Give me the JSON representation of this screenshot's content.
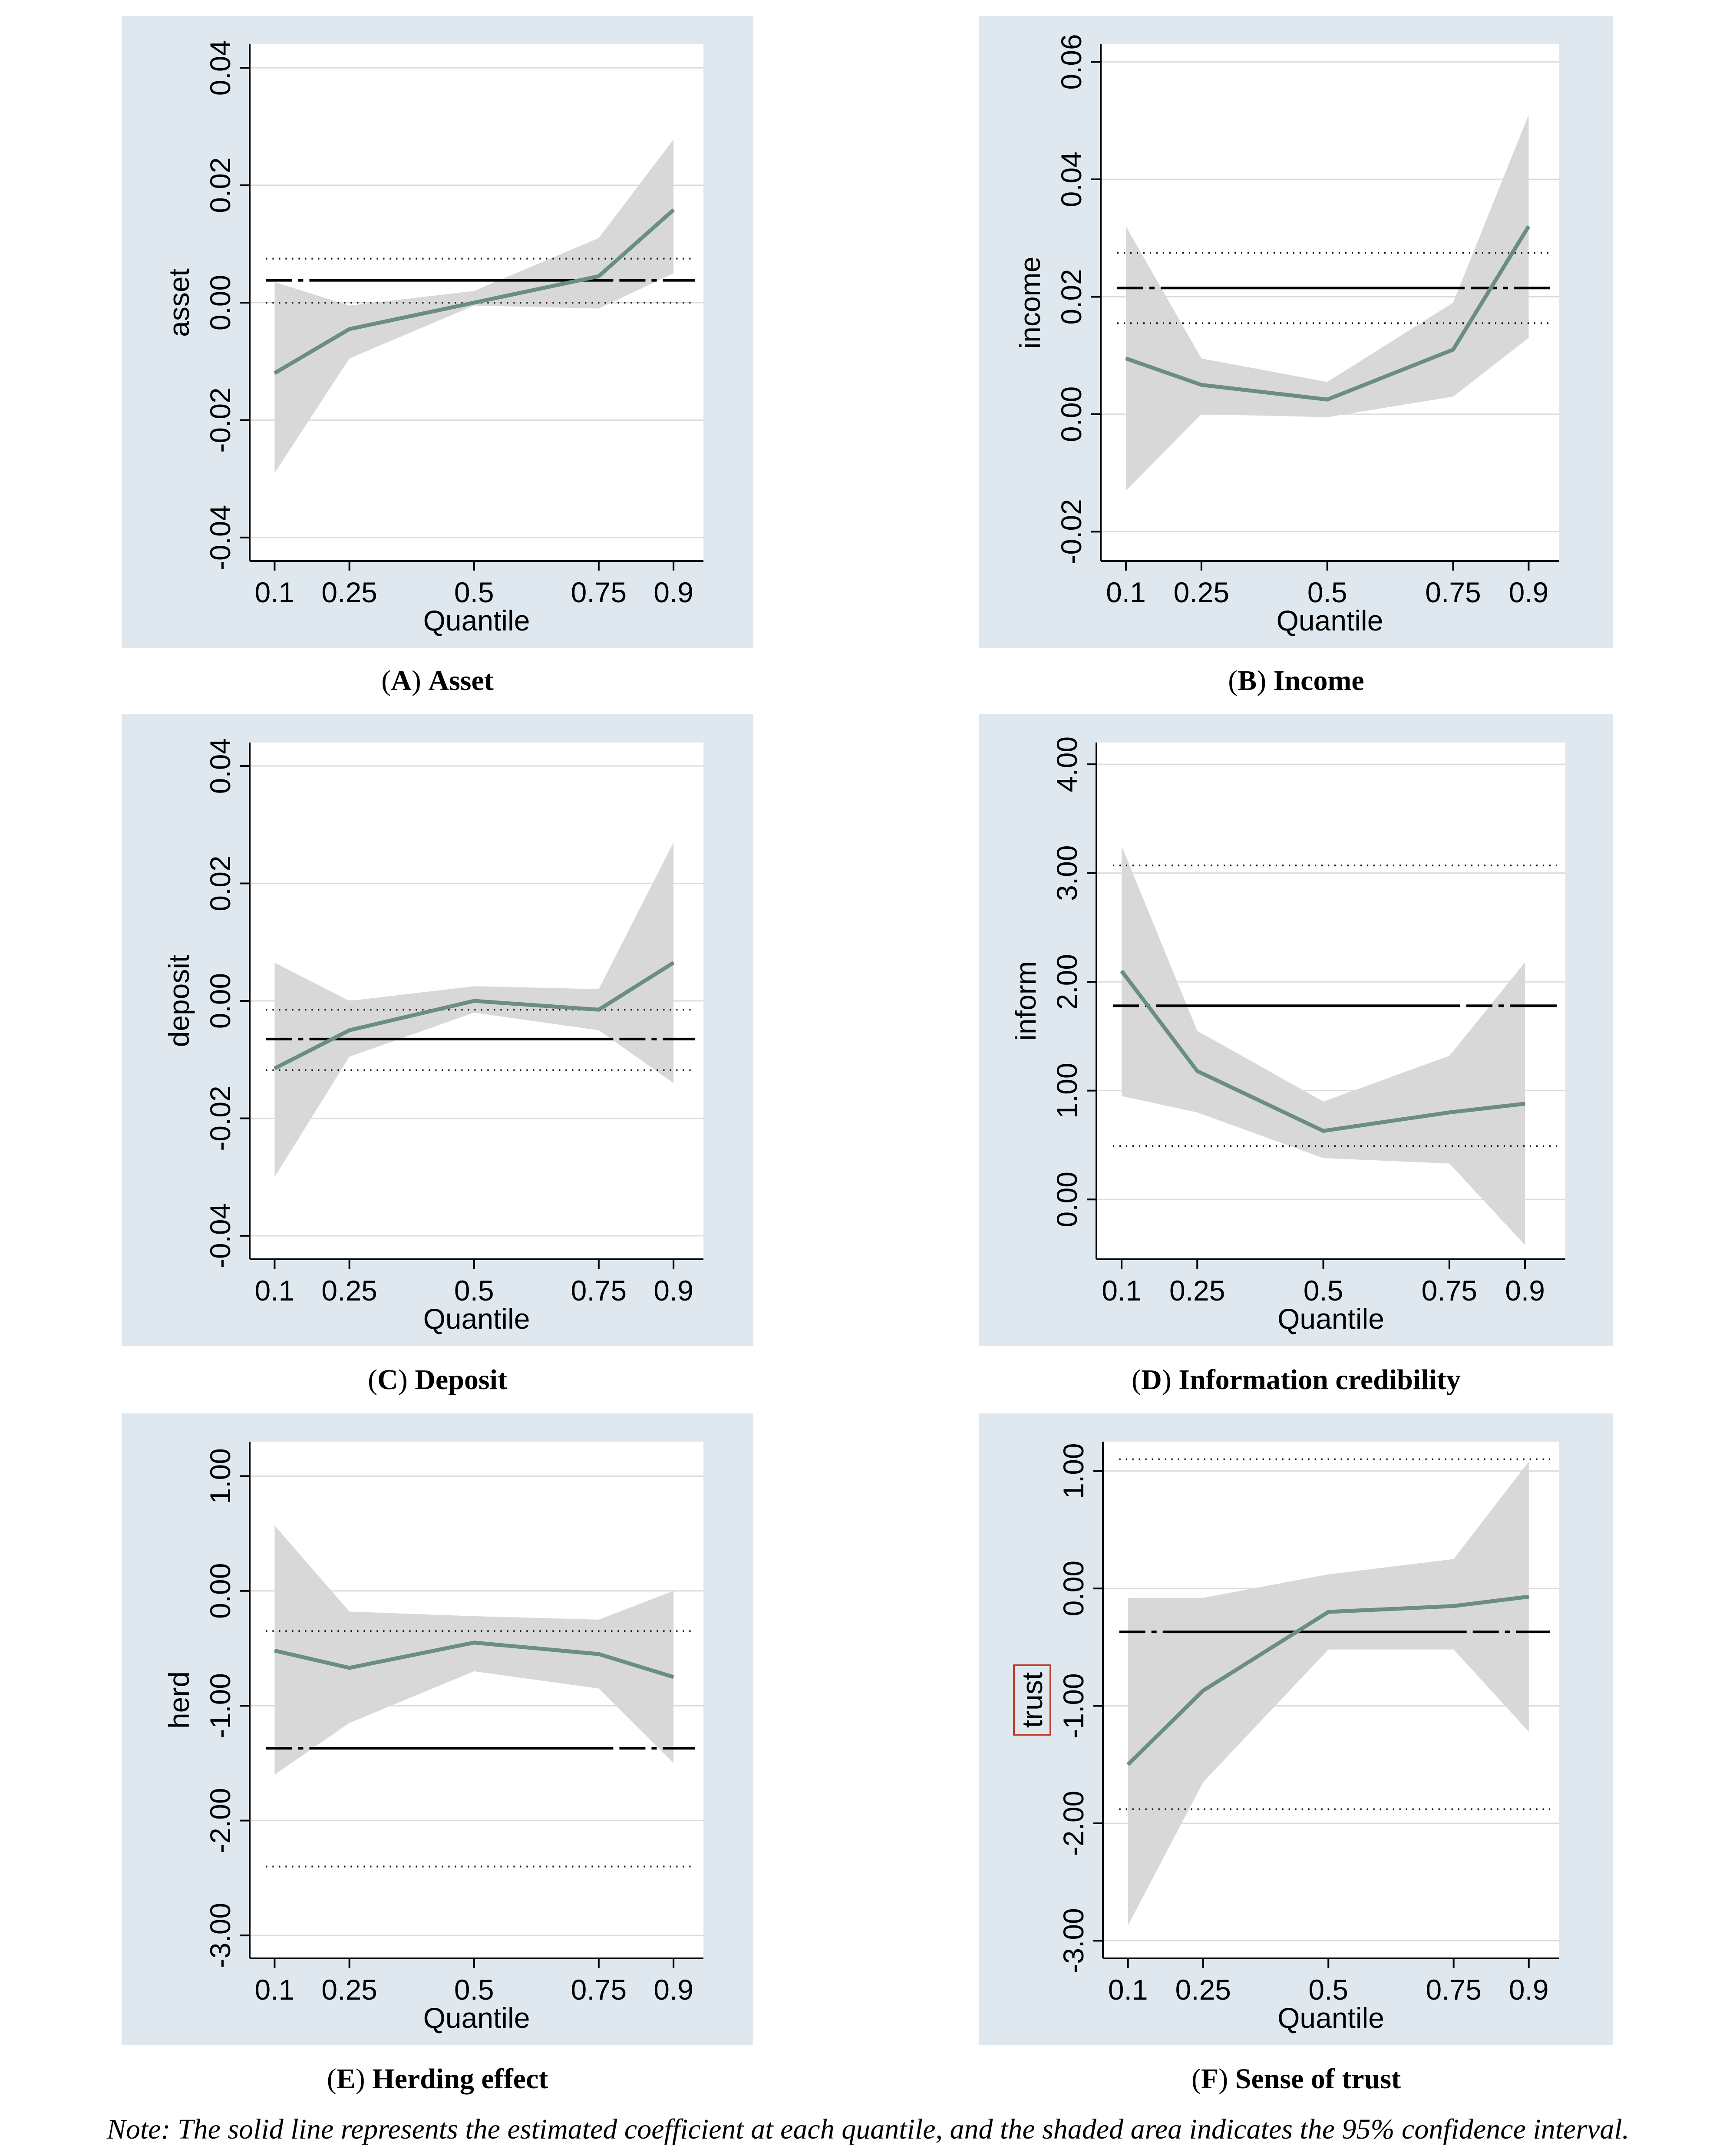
{
  "note": "Note: The solid line represents the estimated coefficient at each quantile, and the shaded area indicates the 95% confidence interval.",
  "colors": {
    "panel_bg": "#dfe8ee",
    "plot_bg": "#ffffff",
    "coef_line": "#6b8e82",
    "ci_fill": "#d8d8d8",
    "grid": "#dcdcdc",
    "ols_line": "#000000"
  },
  "chart_data": [
    {
      "id": "A",
      "type": "line",
      "caption_letter": "A",
      "caption_title": "Asset",
      "ylabel": "asset",
      "xlabel": "Quantile",
      "x": [
        0.1,
        0.25,
        0.5,
        0.75,
        0.9
      ],
      "x_tick_labels": [
        "0.1",
        "0.25",
        "0.5",
        "0.75",
        "0.9"
      ],
      "xlim": [
        0.05,
        0.96
      ],
      "ylim": [
        -0.044,
        0.044
      ],
      "y_ticks": [
        -0.04,
        -0.02,
        0.0,
        0.02,
        0.04
      ],
      "y_tick_labels": [
        "-0.04",
        "-0.02",
        "0.00",
        "0.02",
        "0.04"
      ],
      "coef": [
        -0.012,
        -0.0045,
        0.0,
        0.0045,
        0.0158
      ],
      "ci_lower": [
        -0.029,
        -0.0095,
        -0.0005,
        -0.001,
        0.005
      ],
      "ci_upper": [
        0.0035,
        -0.0005,
        0.002,
        0.011,
        0.0278
      ],
      "ols": 0.0038,
      "ols_upper": 0.0075,
      "ols_lower": 0.0
    },
    {
      "id": "B",
      "type": "line",
      "caption_letter": "B",
      "caption_title": "Income",
      "ylabel": "income",
      "xlabel": "Quantile",
      "x": [
        0.1,
        0.25,
        0.5,
        0.75,
        0.9
      ],
      "x_tick_labels": [
        "0.1",
        "0.25",
        "0.5",
        "0.75",
        "0.9"
      ],
      "xlim": [
        0.05,
        0.96
      ],
      "ylim": [
        -0.025,
        0.063
      ],
      "y_ticks": [
        -0.02,
        0.0,
        0.02,
        0.04,
        0.06
      ],
      "y_tick_labels": [
        "-0.02",
        "0.00",
        "0.02",
        "0.04",
        "0.06"
      ],
      "coef": [
        0.0095,
        0.005,
        0.0025,
        0.011,
        0.032
      ],
      "ci_lower": [
        -0.013,
        0.0,
        -0.0005,
        0.003,
        0.013
      ],
      "ci_upper": [
        0.032,
        0.0095,
        0.0055,
        0.019,
        0.051
      ],
      "ols": 0.0215,
      "ols_upper": 0.0275,
      "ols_lower": 0.0155
    },
    {
      "id": "C",
      "type": "line",
      "caption_letter": "C",
      "caption_title": "Deposit",
      "ylabel": "deposit",
      "xlabel": "Quantile",
      "x": [
        0.1,
        0.25,
        0.5,
        0.75,
        0.9
      ],
      "x_tick_labels": [
        "0.1",
        "0.25",
        "0.5",
        "0.75",
        "0.9"
      ],
      "xlim": [
        0.05,
        0.96
      ],
      "ylim": [
        -0.044,
        0.044
      ],
      "y_ticks": [
        -0.04,
        -0.02,
        0.0,
        0.02,
        0.04
      ],
      "y_tick_labels": [
        "-0.04",
        "-0.02",
        "0.00",
        "0.02",
        "0.04"
      ],
      "coef": [
        -0.0115,
        -0.005,
        0.0,
        -0.0015,
        0.0065
      ],
      "ci_lower": [
        -0.03,
        -0.0095,
        -0.002,
        -0.005,
        -0.014
      ],
      "ci_upper": [
        0.0065,
        0.0,
        0.0025,
        0.002,
        0.027
      ],
      "ols": -0.0065,
      "ols_upper": -0.0015,
      "ols_lower": -0.0118
    },
    {
      "id": "D",
      "type": "line",
      "caption_letter": "D",
      "caption_title": "Information credibility",
      "ylabel": "inform",
      "xlabel": "Quantile",
      "x": [
        0.1,
        0.25,
        0.5,
        0.75,
        0.9
      ],
      "x_tick_labels": [
        "0.1",
        "0.25",
        "0.5",
        "0.75",
        "0.9"
      ],
      "xlim": [
        0.05,
        0.98
      ],
      "ylim": [
        -0.55,
        4.2
      ],
      "y_ticks": [
        0.0,
        1.0,
        2.0,
        3.0,
        4.0
      ],
      "y_tick_labels": [
        "0.00",
        "1.00",
        "2.00",
        "3.00",
        "4.00"
      ],
      "coef": [
        2.1,
        1.18,
        0.63,
        0.8,
        0.88
      ],
      "ci_lower": [
        0.95,
        0.8,
        0.38,
        0.33,
        -0.42
      ],
      "ci_upper": [
        3.25,
        1.55,
        0.9,
        1.32,
        2.18
      ],
      "ols": 1.78,
      "ols_upper": 3.07,
      "ols_lower": 0.49
    },
    {
      "id": "E",
      "type": "line",
      "caption_letter": "E",
      "caption_title": "Herding effect",
      "ylabel": "herd",
      "xlabel": "Quantile",
      "x": [
        0.1,
        0.25,
        0.5,
        0.75,
        0.9
      ],
      "x_tick_labels": [
        "0.1",
        "0.25",
        "0.5",
        "0.75",
        "0.9"
      ],
      "xlim": [
        0.05,
        0.96
      ],
      "ylim": [
        -3.2,
        1.3
      ],
      "y_ticks": [
        -3.0,
        -2.0,
        -1.0,
        0.0,
        1.0
      ],
      "y_tick_labels": [
        "-3.00",
        "-2.00",
        "-1.00",
        "0.00",
        "1.00"
      ],
      "coef": [
        -0.52,
        -0.67,
        -0.45,
        -0.55,
        -0.75
      ],
      "ci_lower": [
        -1.6,
        -1.15,
        -0.7,
        -0.85,
        -1.5
      ],
      "ci_upper": [
        0.57,
        -0.18,
        -0.22,
        -0.25,
        0.0
      ],
      "ols": -1.37,
      "ols_upper": -0.35,
      "ols_lower": -2.4
    },
    {
      "id": "F",
      "type": "line",
      "caption_letter": "F",
      "caption_title": "Sense of trust",
      "ylabel": "trust",
      "xlabel": "Quantile",
      "x": [
        0.1,
        0.25,
        0.5,
        0.75,
        0.9
      ],
      "x_tick_labels": [
        "0.1",
        "0.25",
        "0.5",
        "0.75",
        "0.9"
      ],
      "xlim": [
        0.05,
        0.96
      ],
      "ylim": [
        -3.15,
        1.25
      ],
      "y_ticks": [
        -3.0,
        -2.0,
        -1.0,
        0.0,
        1.0
      ],
      "y_tick_labels": [
        "-3.00",
        "-2.00",
        "-1.00",
        "0.00",
        "1.00"
      ],
      "coef": [
        -1.5,
        -0.87,
        -0.2,
        -0.15,
        -0.07
      ],
      "ci_lower": [
        -2.87,
        -1.65,
        -0.52,
        -0.52,
        -1.22
      ],
      "ci_upper": [
        -0.08,
        -0.08,
        0.12,
        0.25,
        1.08
      ],
      "ols": -0.37,
      "ols_upper": 1.1,
      "ols_lower": -1.88
    }
  ]
}
